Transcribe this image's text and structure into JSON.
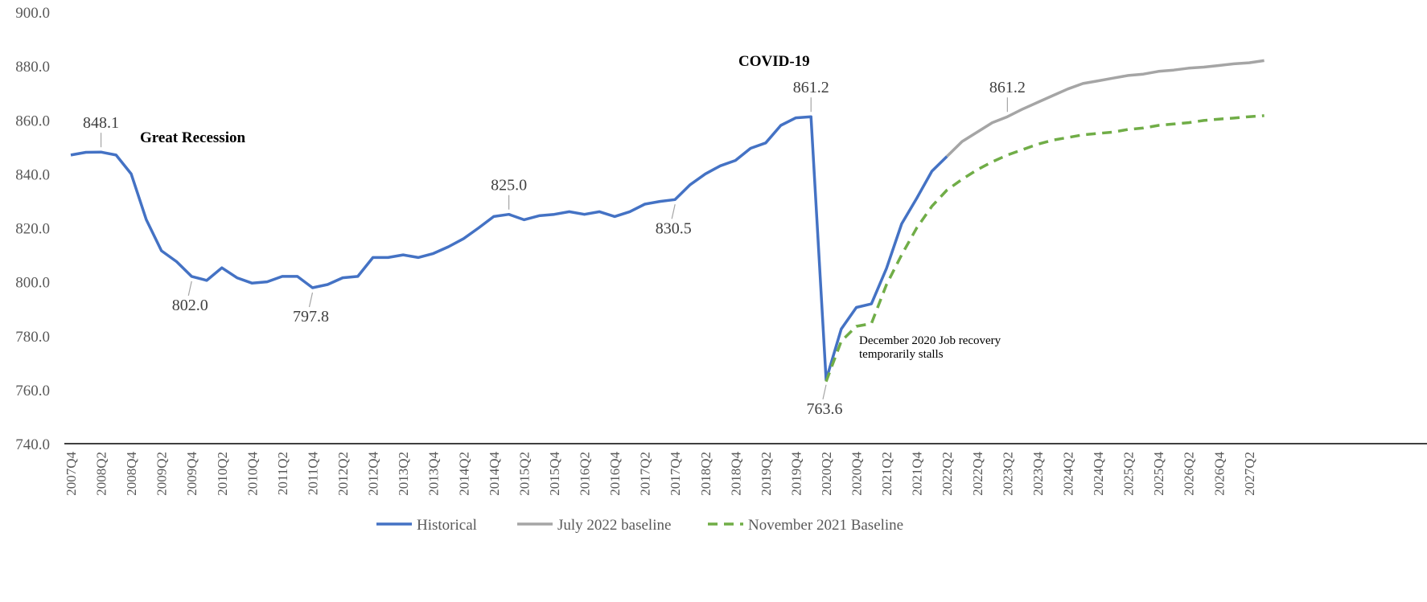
{
  "chart_data": {
    "type": "line",
    "categories": [
      "2007Q4",
      null,
      "2008Q2",
      null,
      "2008Q4",
      null,
      "2009Q2",
      null,
      "2009Q4",
      null,
      "2010Q2",
      null,
      "2010Q4",
      null,
      "2011Q2",
      null,
      "2011Q4",
      null,
      "2012Q2",
      null,
      "2012Q4",
      null,
      "2013Q2",
      null,
      "2013Q4",
      null,
      "2014Q2",
      null,
      "2014Q4",
      null,
      "2015Q2",
      null,
      "2015Q4",
      null,
      "2016Q2",
      null,
      "2016Q4",
      null,
      "2017Q2",
      null,
      "2017Q4",
      null,
      "2018Q2",
      null,
      "2018Q4",
      null,
      "2019Q2",
      null,
      "2019Q4",
      null,
      "2020Q2",
      null,
      "2020Q4",
      null,
      "2021Q2",
      null,
      "2021Q4",
      null,
      "2022Q2",
      null,
      "2022Q4",
      null,
      "2023Q2",
      null,
      "2023Q4",
      null,
      "2024Q2",
      null,
      "2024Q4",
      null,
      "2025Q2",
      null,
      "2025Q4",
      null,
      "2026Q2",
      null,
      "2026Q4",
      null,
      "2027Q2",
      null
    ],
    "series": [
      {
        "name": "Historical",
        "color": "#4472c4",
        "dash": false,
        "values": [
          847,
          848,
          848.1,
          847,
          840,
          823,
          811.5,
          807.5,
          802.0,
          800.5,
          805.2,
          801.5,
          799.5,
          800,
          802,
          802,
          797.8,
          799,
          801.5,
          802,
          809,
          809,
          810,
          809,
          810.5,
          813,
          816,
          820,
          824.2,
          825.0,
          823,
          824.5,
          825,
          826,
          825,
          826,
          824.2,
          826,
          828.8,
          829.8,
          830.5,
          836,
          840,
          843,
          845,
          849.5,
          851.5,
          858,
          860.8,
          861.2,
          763.6,
          782.5,
          790.5,
          791.8,
          805,
          821.5,
          831,
          841,
          846.5,
          null,
          null,
          null,
          null,
          null,
          null,
          null,
          null,
          null,
          null,
          null,
          null,
          null,
          null,
          null,
          null,
          null,
          null,
          null,
          null,
          null
        ],
        "value_labels": [
          null,
          null,
          "848.1",
          null,
          null,
          null,
          null,
          null,
          "802.0",
          null,
          null,
          null,
          null,
          null,
          null,
          null,
          "797.8",
          null,
          null,
          null,
          null,
          null,
          null,
          null,
          null,
          null,
          null,
          null,
          null,
          "825.0",
          null,
          null,
          null,
          null,
          null,
          null,
          null,
          null,
          null,
          null,
          "830.5",
          null,
          null,
          null,
          null,
          null,
          null,
          null,
          null,
          "861.2",
          "763.6",
          null,
          null,
          null,
          null,
          null,
          null,
          null,
          null,
          null,
          null,
          null,
          null,
          null,
          null,
          null,
          null,
          null,
          null,
          null,
          null,
          null,
          null,
          null,
          null,
          null,
          null,
          null,
          null,
          null
        ]
      },
      {
        "name": "July 2022 baseline",
        "color": "#a5a5a5",
        "dash": false,
        "values": [
          null,
          null,
          null,
          null,
          null,
          null,
          null,
          null,
          null,
          null,
          null,
          null,
          null,
          null,
          null,
          null,
          null,
          null,
          null,
          null,
          null,
          null,
          null,
          null,
          null,
          null,
          null,
          null,
          null,
          null,
          null,
          null,
          null,
          null,
          null,
          null,
          null,
          null,
          null,
          null,
          null,
          null,
          null,
          null,
          null,
          null,
          null,
          null,
          null,
          null,
          null,
          null,
          null,
          null,
          null,
          null,
          null,
          null,
          846.5,
          852,
          855.5,
          859,
          861.2,
          864,
          866.5,
          869,
          871.5,
          873.5,
          874.5,
          875.5,
          876.5,
          877,
          878,
          878.5,
          879.2,
          879.6,
          880.2,
          880.8,
          881.2,
          882
        ],
        "value_labels": [
          null,
          null,
          null,
          null,
          null,
          null,
          null,
          null,
          null,
          null,
          null,
          null,
          null,
          null,
          null,
          null,
          null,
          null,
          null,
          null,
          null,
          null,
          null,
          null,
          null,
          null,
          null,
          null,
          null,
          null,
          null,
          null,
          null,
          null,
          null,
          null,
          null,
          null,
          null,
          null,
          null,
          null,
          null,
          null,
          null,
          null,
          null,
          null,
          null,
          null,
          null,
          null,
          null,
          null,
          null,
          null,
          null,
          null,
          null,
          null,
          null,
          null,
          "861.2",
          null,
          null,
          null,
          null,
          null,
          null,
          null,
          null,
          null,
          null,
          null,
          null,
          null,
          null,
          null,
          null,
          null
        ]
      },
      {
        "name": "November 2021 Baseline",
        "color": "#70ad47",
        "dash": true,
        "values": [
          null,
          null,
          null,
          null,
          null,
          null,
          null,
          null,
          null,
          null,
          null,
          null,
          null,
          null,
          null,
          null,
          null,
          null,
          null,
          null,
          null,
          null,
          null,
          null,
          null,
          null,
          null,
          null,
          null,
          null,
          null,
          null,
          null,
          null,
          null,
          null,
          null,
          null,
          null,
          null,
          null,
          null,
          null,
          null,
          null,
          null,
          null,
          null,
          null,
          null,
          763,
          778,
          783.5,
          784.5,
          799,
          810,
          820,
          828,
          834,
          838,
          841.5,
          844.5,
          847,
          849,
          851,
          852.5,
          853.5,
          854.5,
          855,
          855.5,
          856.5,
          857,
          858,
          858.5,
          859,
          859.8,
          860.3,
          860.7,
          861.2,
          861.6
        ]
      }
    ],
    "annotations": [
      "Great Recession",
      "COVID-19",
      "December 2020 Job recovery temporarily stalls"
    ],
    "ylim": [
      740,
      900
    ],
    "yticks": [
      {
        "value": 740,
        "label": "740.0"
      },
      {
        "value": 760,
        "label": "760.0"
      },
      {
        "value": 780,
        "label": "780.0"
      },
      {
        "value": 800,
        "label": "800.0"
      },
      {
        "value": 820,
        "label": "820.0"
      },
      {
        "value": 840,
        "label": "840.0"
      },
      {
        "value": 860,
        "label": "860.0"
      },
      {
        "value": 880,
        "label": "880.0"
      },
      {
        "value": 900,
        "label": "900.0"
      }
    ],
    "grid": false,
    "legend": "bottom"
  }
}
